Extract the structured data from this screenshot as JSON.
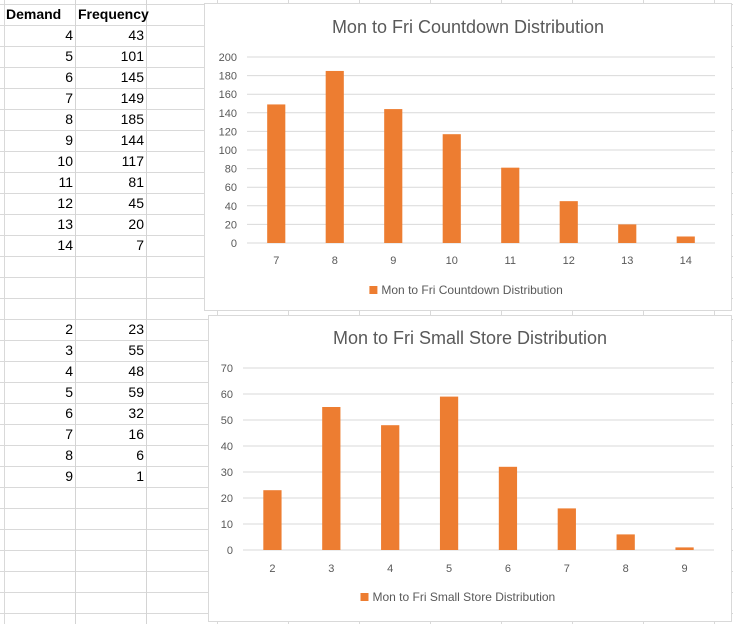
{
  "table1": {
    "headers": [
      "Demand",
      "Frequency"
    ],
    "rows": [
      [
        "4",
        "43"
      ],
      [
        "5",
        "101"
      ],
      [
        "6",
        "145"
      ],
      [
        "7",
        "149"
      ],
      [
        "8",
        "185"
      ],
      [
        "9",
        "144"
      ],
      [
        "10",
        "117"
      ],
      [
        "11",
        "81"
      ],
      [
        "12",
        "45"
      ],
      [
        "13",
        "20"
      ],
      [
        "14",
        "7"
      ]
    ]
  },
  "table2": {
    "rows": [
      [
        "2",
        "23"
      ],
      [
        "3",
        "55"
      ],
      [
        "4",
        "48"
      ],
      [
        "5",
        "59"
      ],
      [
        "6",
        "32"
      ],
      [
        "7",
        "16"
      ],
      [
        "8",
        "6"
      ],
      [
        "9",
        "1"
      ]
    ]
  },
  "chart_data": [
    {
      "type": "bar",
      "title": "Mon to Fri Countdown Distribution",
      "categories": [
        "7",
        "8",
        "9",
        "10",
        "11",
        "12",
        "13",
        "14"
      ],
      "series": [
        {
          "name": "Mon to Fri Countdown Distribution",
          "values": [
            149,
            185,
            144,
            117,
            81,
            45,
            20,
            7
          ]
        }
      ],
      "xlabel": "",
      "ylabel": "",
      "ylim": [
        0,
        200
      ],
      "yticks": [
        0,
        20,
        40,
        60,
        80,
        100,
        120,
        140,
        160,
        180,
        200
      ],
      "grid": true,
      "legend": "bottom",
      "color": "#ED7D31"
    },
    {
      "type": "bar",
      "title": "Mon to Fri Small Store Distribution",
      "categories": [
        "2",
        "3",
        "4",
        "5",
        "6",
        "7",
        "8",
        "9"
      ],
      "series": [
        {
          "name": "Mon to Fri Small Store Distribution",
          "values": [
            23,
            55,
            48,
            59,
            32,
            16,
            6,
            1
          ]
        }
      ],
      "xlabel": "",
      "ylabel": "",
      "ylim": [
        0,
        70
      ],
      "yticks": [
        0,
        10,
        20,
        30,
        40,
        50,
        60,
        70
      ],
      "grid": true,
      "legend": "bottom",
      "color": "#ED7D31"
    }
  ]
}
